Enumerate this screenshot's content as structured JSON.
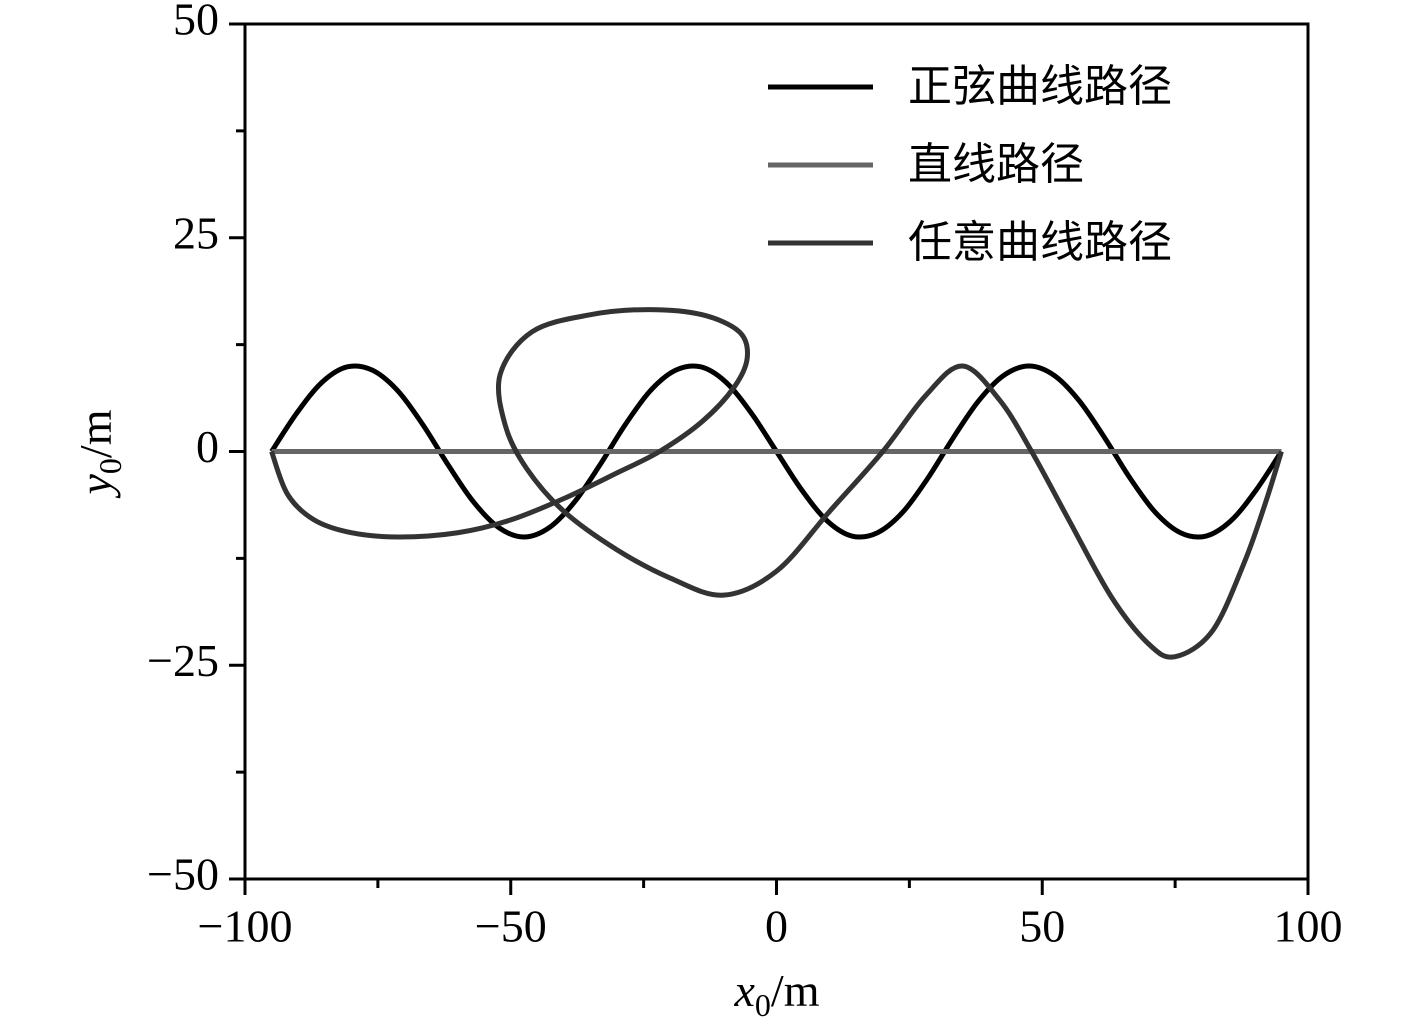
{
  "chart_data": {
    "type": "line",
    "xlabel_parts": [
      "x",
      "0",
      "/m"
    ],
    "ylabel_parts": [
      "y",
      "0",
      "/m"
    ],
    "xlim": [
      -100,
      100
    ],
    "ylim": [
      -50,
      50
    ],
    "xticks": [
      {
        "value": -100,
        "label": "−100"
      },
      {
        "value": -50,
        "label": "−50"
      },
      0,
      50,
      100
    ],
    "yticks": [
      {
        "value": -50,
        "label": "−50"
      },
      {
        "value": -25,
        "label": "−25"
      },
      0,
      25,
      50
    ],
    "xminorticks": [
      -75,
      -25,
      25,
      75
    ],
    "yminorticks": [
      -37.5,
      -12.5,
      12.5,
      37.5
    ],
    "legend_position": "upper right",
    "series": [
      {
        "name": "正弦曲线路径",
        "color": "#000000",
        "x": [
          -95,
          -90.25,
          -85.5,
          -80.75,
          -76,
          -71.25,
          -66.5,
          -61.75,
          -57,
          -52.25,
          -47.5,
          -42.75,
          -38,
          -33.25,
          -28.5,
          -23.75,
          -19,
          -14.25,
          -9.5,
          -4.75,
          0,
          4.75,
          9.5,
          14.25,
          19,
          23.75,
          28.5,
          33.25,
          38,
          42.75,
          47.5,
          52.25,
          57,
          61.75,
          66.5,
          71.25,
          76,
          80.75,
          85.5,
          90.25,
          95
        ],
        "values": [
          0,
          4.5,
          8.1,
          9.9,
          9.5,
          7.1,
          3.1,
          -1.6,
          -5.9,
          -8.9,
          -10,
          -8.9,
          -5.9,
          -1.6,
          3.1,
          7.1,
          9.5,
          9.9,
          8.1,
          4.5,
          0,
          -4.5,
          -8.1,
          -9.9,
          -9.5,
          -7.1,
          -3.1,
          1.6,
          5.9,
          8.9,
          10,
          8.9,
          5.9,
          1.6,
          -3.1,
          -7.1,
          -9.5,
          -9.9,
          -8.1,
          -4.5,
          0
        ]
      },
      {
        "name": "直线路径",
        "color": "#666666",
        "x": [
          -95,
          95
        ],
        "values": [
          0,
          0
        ]
      },
      {
        "name": "任意曲线路径",
        "color": "#333333",
        "x": [
          -95,
          -92,
          -87,
          -80,
          -71,
          -60,
          -50,
          -40,
          -30,
          -22,
          -14,
          -8,
          -5.5,
          -7,
          -14,
          -24,
          -35,
          -46,
          -52,
          -51,
          -47,
          -40,
          -30,
          -20,
          -10,
          0,
          10,
          20,
          28,
          35,
          42,
          48,
          55,
          63,
          70,
          75,
          82,
          88,
          92,
          95
        ],
        "values": [
          0,
          -5,
          -8,
          -9.5,
          -10,
          -9.5,
          -8,
          -5.5,
          -2.5,
          0,
          3.5,
          7.5,
          11,
          14,
          16,
          16.6,
          16,
          14,
          9,
          3,
          -2,
          -7,
          -11.5,
          -14.8,
          -16.8,
          -14,
          -7,
          0,
          6.5,
          10,
          6,
          0,
          -8,
          -17,
          -22.5,
          -24,
          -21,
          -13,
          -6,
          0
        ]
      }
    ]
  }
}
